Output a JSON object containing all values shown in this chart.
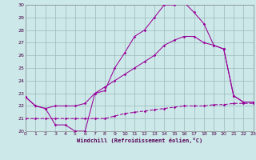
{
  "bg_color": "#cce8e8",
  "grid_color": "#99bbbb",
  "line_color": "#990099",
  "xlabel": "Windchill (Refroidissement éolien,°C)",
  "xlim": [
    0,
    23
  ],
  "ylim": [
    20,
    30
  ],
  "ytick_vals": [
    20,
    21,
    22,
    23,
    24,
    25,
    26,
    27,
    28,
    29,
    30
  ],
  "xtick_vals": [
    0,
    1,
    2,
    3,
    4,
    5,
    6,
    7,
    8,
    9,
    10,
    11,
    12,
    13,
    14,
    15,
    16,
    17,
    18,
    19,
    20,
    21,
    22,
    23
  ],
  "curve1_x": [
    0,
    1,
    2,
    3,
    4,
    5,
    6,
    7,
    8,
    9,
    10,
    11,
    12,
    13,
    14,
    15,
    16,
    17,
    18,
    19,
    20,
    21,
    22,
    23
  ],
  "curve1_y": [
    22.7,
    22.0,
    21.8,
    20.5,
    20.5,
    20.0,
    20.0,
    23.0,
    23.2,
    25.0,
    26.2,
    27.5,
    28.0,
    29.0,
    30.0,
    30.0,
    30.2,
    29.4,
    28.5,
    26.8,
    26.5,
    22.8,
    22.3,
    22.3
  ],
  "curve2_x": [
    0,
    1,
    2,
    3,
    4,
    5,
    6,
    7,
    8,
    9,
    10,
    11,
    12,
    13,
    14,
    15,
    16,
    17,
    18,
    19,
    20,
    21,
    22,
    23
  ],
  "curve2_y": [
    22.7,
    22.0,
    21.8,
    22.0,
    22.0,
    22.0,
    22.2,
    23.0,
    23.5,
    24.0,
    24.5,
    25.0,
    25.5,
    26.0,
    26.8,
    27.2,
    27.5,
    27.5,
    27.0,
    26.8,
    26.5,
    22.8,
    22.3,
    22.3
  ],
  "curve3_x": [
    0,
    1,
    2,
    3,
    4,
    5,
    6,
    7,
    8,
    9,
    10,
    11,
    12,
    13,
    14,
    15,
    16,
    17,
    18,
    19,
    20,
    21,
    22,
    23
  ],
  "curve3_y": [
    21.0,
    21.0,
    21.0,
    21.0,
    21.0,
    21.0,
    21.0,
    21.0,
    21.0,
    21.2,
    21.4,
    21.5,
    21.6,
    21.7,
    21.8,
    21.9,
    22.0,
    22.0,
    22.0,
    22.1,
    22.1,
    22.2,
    22.2,
    22.2
  ]
}
